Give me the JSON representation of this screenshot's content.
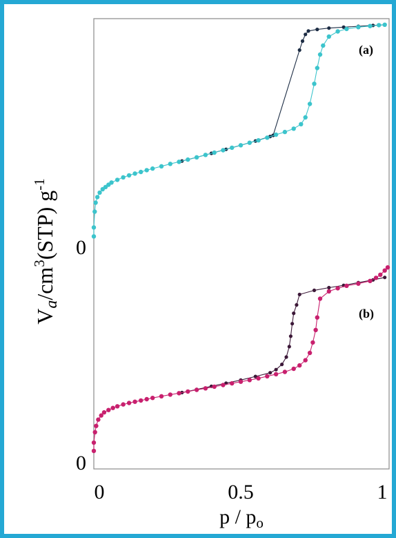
{
  "chart_data": {
    "type": "scatter",
    "xlabel": "p / p",
    "xlabel_sub": "o",
    "ylabel": {
      "v": "V",
      "a": "a",
      "unit": "/cm",
      "exp": "3",
      "stp": "(STP) g",
      "neg1": "-1"
    },
    "xlim": [
      0,
      1
    ],
    "x_ticks": [
      {
        "value": 0,
        "label": "0"
      },
      {
        "value": 0.5,
        "label": "0.5"
      },
      {
        "value": 1,
        "label": "1"
      }
    ],
    "panels": [
      {
        "label": "(a)",
        "zero_label": "0",
        "ylim": [
          0,
          100
        ],
        "adsorption_color": "#3cc4cc",
        "desorption_color": "#1c2c44",
        "adsorption": {
          "x": [
            0.0,
            0.0,
            0.003,
            0.006,
            0.012,
            0.02,
            0.03,
            0.04,
            0.05,
            0.06,
            0.08,
            0.1,
            0.12,
            0.14,
            0.16,
            0.18,
            0.2,
            0.23,
            0.26,
            0.29,
            0.32,
            0.35,
            0.38,
            0.41,
            0.44,
            0.47,
            0.5,
            0.53,
            0.56,
            0.59,
            0.62,
            0.65,
            0.68,
            0.705,
            0.72,
            0.735,
            0.75,
            0.76,
            0.77,
            0.78,
            0.8,
            0.83,
            0.86,
            0.9,
            0.94,
            0.97,
            0.99
          ],
          "y": [
            3,
            7,
            14,
            18,
            20.5,
            22.5,
            24,
            25,
            26,
            27,
            28.2,
            29.3,
            30.2,
            31,
            31.7,
            32.5,
            33.2,
            34.2,
            35.3,
            36.2,
            37.2,
            38.2,
            39.3,
            40.3,
            41.4,
            42.5,
            43.6,
            44.7,
            45.8,
            47,
            48.3,
            49.5,
            51,
            53,
            56,
            62,
            71,
            78,
            84,
            88,
            92,
            94.3,
            95.4,
            96.2,
            96.7,
            97.1,
            97.3
          ]
        },
        "desorption": {
          "x": [
            0.3,
            0.35,
            0.4,
            0.45,
            0.5,
            0.55,
            0.6,
            0.61,
            0.7,
            0.71,
            0.72,
            0.73,
            0.76,
            0.8,
            0.85,
            0.9,
            0.95,
            0.99
          ],
          "y": [
            36.6,
            38.2,
            40,
            41.8,
            43.6,
            45.5,
            47.5,
            48,
            86,
            90,
            93,
            94.5,
            95.2,
            95.8,
            96.2,
            96.6,
            97,
            97.3
          ]
        }
      },
      {
        "label": "(b)",
        "zero_label": "0",
        "ylim": [
          0,
          100
        ],
        "adsorption_color": "#c8206e",
        "desorption_color": "#3c1838",
        "adsorption": {
          "x": [
            0.0,
            0.0,
            0.004,
            0.008,
            0.015,
            0.025,
            0.035,
            0.05,
            0.065,
            0.08,
            0.1,
            0.12,
            0.14,
            0.16,
            0.18,
            0.2,
            0.23,
            0.26,
            0.29,
            0.32,
            0.35,
            0.38,
            0.41,
            0.44,
            0.47,
            0.5,
            0.53,
            0.56,
            0.59,
            0.62,
            0.65,
            0.68,
            0.7,
            0.72,
            0.735,
            0.745,
            0.755,
            0.76,
            0.77,
            0.8,
            0.83,
            0.86,
            0.9,
            0.94,
            0.96,
            0.975,
            0.99,
            1.0
          ],
          "y": [
            3,
            7,
            12,
            15,
            18,
            20,
            21.5,
            22.6,
            23.6,
            24.4,
            25.3,
            26,
            26.6,
            27.2,
            27.8,
            28.4,
            29.2,
            30,
            30.7,
            31.5,
            32.3,
            33,
            33.8,
            34.6,
            35.4,
            36.2,
            37,
            37.8,
            38.8,
            39.8,
            40.9,
            42.4,
            44,
            46.5,
            50,
            55,
            61,
            67,
            76,
            79.5,
            81,
            82.2,
            83.2,
            84.5,
            86,
            87.5,
            89.5,
            91
          ]
        },
        "desorption": {
          "x": [
            0.3,
            0.35,
            0.4,
            0.45,
            0.5,
            0.55,
            0.6,
            0.62,
            0.64,
            0.655,
            0.665,
            0.67,
            0.675,
            0.68,
            0.69,
            0.7,
            0.75,
            0.8,
            0.85,
            0.9,
            0.95,
            0.99
          ],
          "y": [
            31,
            32.5,
            34,
            35.5,
            37,
            38.7,
            40.5,
            42,
            44.5,
            48,
            53,
            58,
            64,
            69,
            73,
            78,
            80,
            81.3,
            82.4,
            83.7,
            85,
            86.2
          ]
        }
      }
    ]
  }
}
